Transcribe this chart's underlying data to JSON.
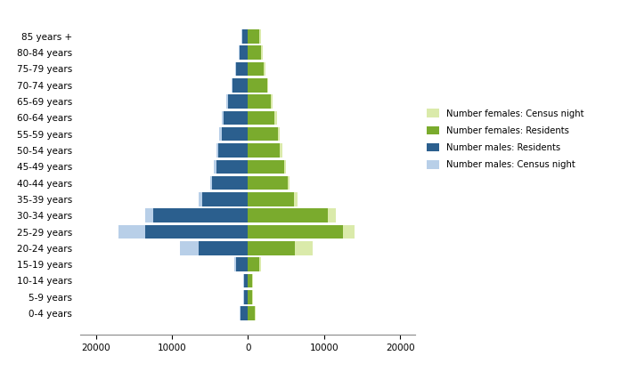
{
  "age_groups": [
    "0-4 years",
    "5-9 years",
    "10-14 years",
    "15-19 years",
    "20-24 years",
    "25-29 years",
    "30-34 years",
    "35-39 years",
    "40-44 years",
    "45-49 years",
    "50-54 years",
    "55-59 years",
    "60-64 years",
    "65-69 years",
    "70-74 years",
    "75-79 years",
    "80-84 years",
    "85 years +"
  ],
  "males_census": [
    1100,
    600,
    600,
    1800,
    9000,
    17000,
    13500,
    6500,
    5000,
    4500,
    4200,
    3800,
    3500,
    2800,
    2200,
    1700,
    1200,
    900
  ],
  "males_residents": [
    1000,
    550,
    550,
    1600,
    6500,
    13500,
    12500,
    6000,
    4700,
    4200,
    3900,
    3500,
    3200,
    2600,
    2000,
    1600,
    1100,
    800
  ],
  "females_census": [
    1000,
    600,
    600,
    1700,
    8500,
    14000,
    11500,
    6500,
    5500,
    5000,
    4500,
    4200,
    3800,
    3200,
    2700,
    2300,
    1900,
    1700
  ],
  "females_residents": [
    900,
    550,
    550,
    1500,
    6200,
    12500,
    10500,
    6000,
    5200,
    4700,
    4200,
    3900,
    3500,
    3000,
    2500,
    2100,
    1700,
    1500
  ],
  "color_males_census": "#b8cfe8",
  "color_males_residents": "#2b5f8e",
  "color_females_census": "#daeaaa",
  "color_females_residents": "#7aab2d",
  "xlim": [
    -22000,
    22000
  ],
  "xticks": [
    -20000,
    -10000,
    0,
    10000,
    20000
  ],
  "xticklabels": [
    "20000",
    "10000",
    "0",
    "10000",
    "20000"
  ],
  "legend_labels": [
    "Number females: Census night",
    "Number females: Residents",
    "Number males: Residents",
    "Number males: Census night"
  ],
  "bar_height": 0.85,
  "background_color": "#ffffff",
  "figsize": [
    6.96,
    4.18
  ],
  "dpi": 100
}
